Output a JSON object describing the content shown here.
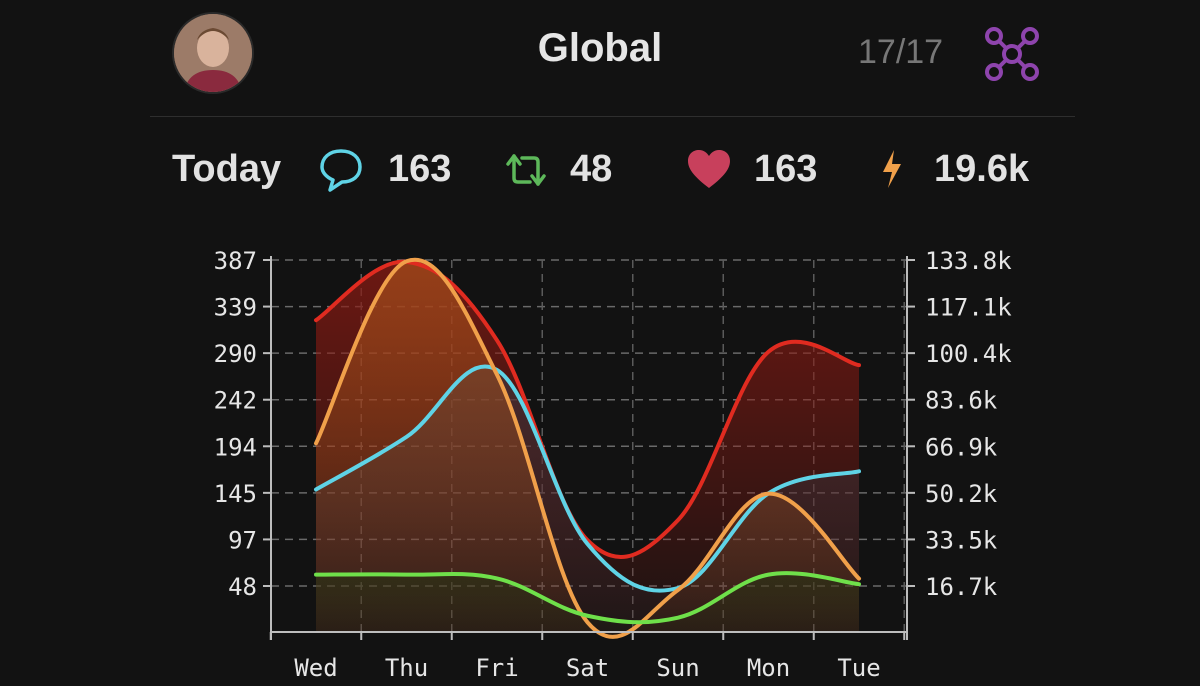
{
  "header": {
    "title": "Global",
    "counter": "17/17",
    "icons": {
      "avatar": "profile-avatar",
      "network": "network-icon"
    },
    "accent": "#8e44ad"
  },
  "stats": {
    "label": "Today",
    "replies": "163",
    "reposts": "48",
    "likes": "163",
    "zaps": "19.6k",
    "colors": {
      "replies": "#5fd3e6",
      "reposts": "#5db85a",
      "likes": "#c8405c",
      "zaps": "#f0a04a"
    }
  },
  "chart_data": {
    "type": "area",
    "categories": [
      "Wed",
      "Thu",
      "Fri",
      "Sat",
      "Sun",
      "Mon",
      "Tue"
    ],
    "y_left": {
      "ticks": [
        "387",
        "339",
        "290",
        "242",
        "194",
        "145",
        "97",
        "48"
      ],
      "range": [
        0,
        387
      ]
    },
    "y_right": {
      "ticks": [
        "133.8k",
        "117.1k",
        "100.4k",
        "83.6k",
        "66.9k",
        "50.2k",
        "33.5k",
        "16.7k"
      ],
      "range": [
        0,
        133800
      ]
    },
    "grid": true,
    "series": [
      {
        "color": "#e02b20",
        "axis": "left",
        "values": [
          326,
          387,
          305,
          96,
          117,
          293,
          279
        ]
      },
      {
        "color": "#5fd3e6",
        "axis": "left",
        "values": [
          149,
          204,
          274,
          92,
          46,
          145,
          168
        ]
      },
      {
        "color": "#f0a04a",
        "axis": "right",
        "values": [
          68200,
          134000,
          93000,
          3500,
          15200,
          50000,
          19300
        ]
      },
      {
        "color": "#6fe04a",
        "axis": "left",
        "values": [
          60,
          60,
          56,
          17,
          15,
          60,
          50
        ]
      }
    ]
  }
}
